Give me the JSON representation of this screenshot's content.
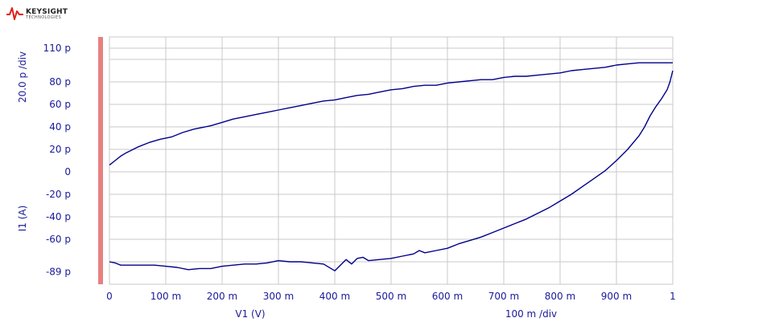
{
  "branding": {
    "name": "KEYSIGHT",
    "subtitle": "TECHNOLOGIES",
    "logo_color": "#e0201c"
  },
  "colors": {
    "trace": "#00008b",
    "text": "#1a1a9a",
    "grid": "#c8c8c8",
    "marker_bar": "#e88080"
  },
  "chart_data": {
    "type": "line",
    "title": "",
    "xlabel": "V1 (V)",
    "x_scale_label": "100 m /div",
    "ylabel": "I1 (A)",
    "y_scale_label": "20.0 p /div",
    "xlim": [
      0,
      1
    ],
    "ylim": [
      -89,
      110
    ],
    "grid": true,
    "x_ticks": [
      {
        "value": 0,
        "label": "0"
      },
      {
        "value": 0.1,
        "label": "100 m"
      },
      {
        "value": 0.2,
        "label": "200 m"
      },
      {
        "value": 0.3,
        "label": "300 m"
      },
      {
        "value": 0.4,
        "label": "400 m"
      },
      {
        "value": 0.5,
        "label": "500 m"
      },
      {
        "value": 0.6,
        "label": "600 m"
      },
      {
        "value": 0.7,
        "label": "700 m"
      },
      {
        "value": 0.8,
        "label": "800 m"
      },
      {
        "value": 0.9,
        "label": "900 m"
      },
      {
        "value": 1.0,
        "label": "1"
      }
    ],
    "y_ticks": [
      {
        "value": 110,
        "label": "110 p"
      },
      {
        "value": 80,
        "label": "80 p"
      },
      {
        "value": 60,
        "label": "60 p"
      },
      {
        "value": 40,
        "label": "40 p"
      },
      {
        "value": 20,
        "label": "20 p"
      },
      {
        "value": 0,
        "label": "0"
      },
      {
        "value": -20,
        "label": "-20 p"
      },
      {
        "value": -40,
        "label": "-40 p"
      },
      {
        "value": -60,
        "label": "-60 p"
      },
      {
        "value": -89,
        "label": "-89 p"
      }
    ],
    "grid_lines_y": [
      110,
      100,
      80,
      60,
      40,
      20,
      0,
      -20,
      -40,
      -60,
      -80
    ],
    "series": [
      {
        "x": [
          0,
          0.01,
          0.02,
          0.03,
          0.05,
          0.07,
          0.09,
          0.11,
          0.13,
          0.15,
          0.18,
          0.2,
          0.22,
          0.24,
          0.26,
          0.28,
          0.3,
          0.32,
          0.34,
          0.36,
          0.38,
          0.4,
          0.42,
          0.44,
          0.46,
          0.48,
          0.5,
          0.52,
          0.54,
          0.56,
          0.58,
          0.6,
          0.62,
          0.64,
          0.66,
          0.68,
          0.7,
          0.72,
          0.74,
          0.76,
          0.78,
          0.8,
          0.82,
          0.84,
          0.86,
          0.88,
          0.9,
          0.92,
          0.94,
          0.96,
          0.98,
          1.0
        ],
        "y": [
          6,
          10,
          14,
          17,
          22,
          26,
          29,
          31,
          35,
          38,
          41,
          44,
          47,
          49,
          51,
          53,
          55,
          57,
          59,
          61,
          63,
          64,
          66,
          68,
          69,
          71,
          73,
          74,
          76,
          77,
          77,
          79,
          80,
          81,
          82,
          82,
          84,
          85,
          85,
          86,
          87,
          88,
          90,
          91,
          92,
          93,
          95,
          96,
          97,
          97,
          97,
          97
        ]
      },
      {
        "x": [
          1.0,
          0.995,
          0.99,
          0.98,
          0.97,
          0.96,
          0.95,
          0.94,
          0.92,
          0.9,
          0.88,
          0.86,
          0.84,
          0.82,
          0.8,
          0.78,
          0.76,
          0.74,
          0.72,
          0.7,
          0.68,
          0.66,
          0.64,
          0.62,
          0.6,
          0.58,
          0.56,
          0.55,
          0.54,
          0.52,
          0.5,
          0.48,
          0.46,
          0.45,
          0.44,
          0.43,
          0.42,
          0.41,
          0.4,
          0.38,
          0.36,
          0.34,
          0.32,
          0.3,
          0.28,
          0.26,
          0.24,
          0.22,
          0.2,
          0.18,
          0.16,
          0.14,
          0.12,
          0.1,
          0.08,
          0.06,
          0.04,
          0.02,
          0.01,
          0.0
        ],
        "y": [
          90,
          80,
          73,
          65,
          58,
          50,
          40,
          32,
          20,
          10,
          1,
          -6,
          -13,
          -20,
          -26,
          -32,
          -37,
          -42,
          -46,
          -50,
          -54,
          -58,
          -61,
          -64,
          -68,
          -70,
          -72,
          -70,
          -73,
          -75,
          -77,
          -78,
          -79,
          -76,
          -77,
          -82,
          -78,
          -83,
          -88,
          -82,
          -81,
          -80,
          -80,
          -79,
          -81,
          -82,
          -82,
          -83,
          -84,
          -86,
          -86,
          -87,
          -85,
          -84,
          -83,
          -83,
          -83,
          -83,
          -81,
          -80
        ]
      }
    ]
  }
}
